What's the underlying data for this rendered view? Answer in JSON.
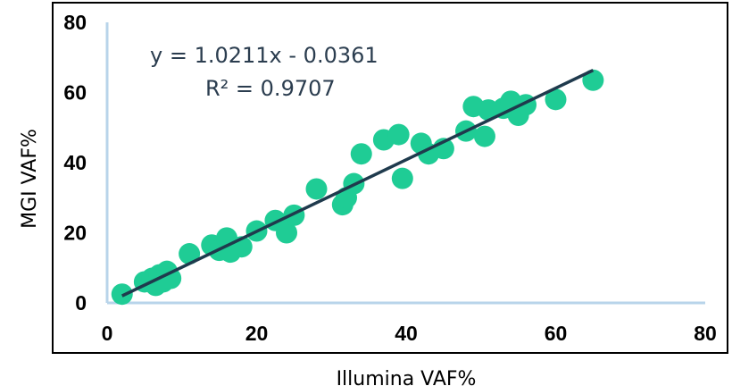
{
  "chart_data": {
    "type": "scatter",
    "xlabel": "Illumina VAF%",
    "ylabel": "MGI VAF%",
    "xlim": [
      0,
      80
    ],
    "ylim": [
      0,
      80
    ],
    "x_ticks": [
      "0",
      "20",
      "40",
      "60",
      "80"
    ],
    "y_ticks": [
      "0",
      "20",
      "40",
      "60",
      "80"
    ],
    "grid": false,
    "annotations": {
      "equation": "y = 1.0211x - 0.0361",
      "r_squared": "R² = 0.9707"
    },
    "trendline": {
      "slope": 1.0211,
      "intercept": -0.0361,
      "x_range": [
        2,
        65
      ]
    },
    "colors": {
      "points": "#1fcc95",
      "trendline": "#1f3a4d",
      "axis": "#b8d4ea",
      "frame": "#000000"
    },
    "points": [
      {
        "x": 2,
        "y": 2.5
      },
      {
        "x": 5,
        "y": 6
      },
      {
        "x": 6,
        "y": 7
      },
      {
        "x": 6.5,
        "y": 5
      },
      {
        "x": 7,
        "y": 8
      },
      {
        "x": 7.5,
        "y": 6
      },
      {
        "x": 8,
        "y": 9
      },
      {
        "x": 8.5,
        "y": 7
      },
      {
        "x": 11,
        "y": 14
      },
      {
        "x": 14,
        "y": 16.5
      },
      {
        "x": 15,
        "y": 15
      },
      {
        "x": 16,
        "y": 18.5
      },
      {
        "x": 16.5,
        "y": 14.5
      },
      {
        "x": 18,
        "y": 16
      },
      {
        "x": 20,
        "y": 20.5
      },
      {
        "x": 22.5,
        "y": 23.5
      },
      {
        "x": 24,
        "y": 20
      },
      {
        "x": 25,
        "y": 25
      },
      {
        "x": 28,
        "y": 32.5
      },
      {
        "x": 31.5,
        "y": 28
      },
      {
        "x": 32,
        "y": 30
      },
      {
        "x": 33,
        "y": 34
      },
      {
        "x": 34,
        "y": 42.5
      },
      {
        "x": 37,
        "y": 46.5
      },
      {
        "x": 39,
        "y": 48
      },
      {
        "x": 39.5,
        "y": 35.5
      },
      {
        "x": 42,
        "y": 45.5
      },
      {
        "x": 43,
        "y": 42.5
      },
      {
        "x": 45,
        "y": 44
      },
      {
        "x": 48,
        "y": 49
      },
      {
        "x": 49,
        "y": 56
      },
      {
        "x": 50.5,
        "y": 47.5
      },
      {
        "x": 51,
        "y": 55
      },
      {
        "x": 53,
        "y": 55.5
      },
      {
        "x": 54,
        "y": 57.5
      },
      {
        "x": 55,
        "y": 53.5
      },
      {
        "x": 56,
        "y": 56.5
      },
      {
        "x": 60,
        "y": 58
      },
      {
        "x": 65,
        "y": 63.5
      }
    ]
  }
}
